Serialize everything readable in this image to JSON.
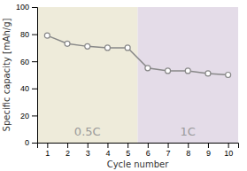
{
  "chart_data": {
    "type": "line",
    "x": [
      1,
      2,
      3,
      4,
      5,
      6,
      7,
      8,
      9,
      10
    ],
    "series": [
      {
        "values": [
          79,
          73,
          71,
          70,
          70,
          55,
          53,
          53,
          51,
          50
        ],
        "color": "#888888",
        "marker": "circle"
      }
    ],
    "xlim": [
      0.5,
      10.5
    ],
    "xticks": [
      1,
      2,
      3,
      4,
      5,
      6,
      7,
      8,
      9,
      10
    ],
    "ylim": [
      0,
      100
    ],
    "yticks": [
      0,
      20,
      40,
      60,
      80,
      100
    ],
    "xlabel": "Cycle number",
    "ylabel": "Specific capacity [mAh/g]",
    "grid": false,
    "regions": [
      {
        "label": "0.5C",
        "x_start": 0.5,
        "x_end": 5.5,
        "color": "#eeebda"
      },
      {
        "label": "1C",
        "x_start": 5.5,
        "x_end": 10.5,
        "color": "#e4dce8"
      }
    ]
  }
}
